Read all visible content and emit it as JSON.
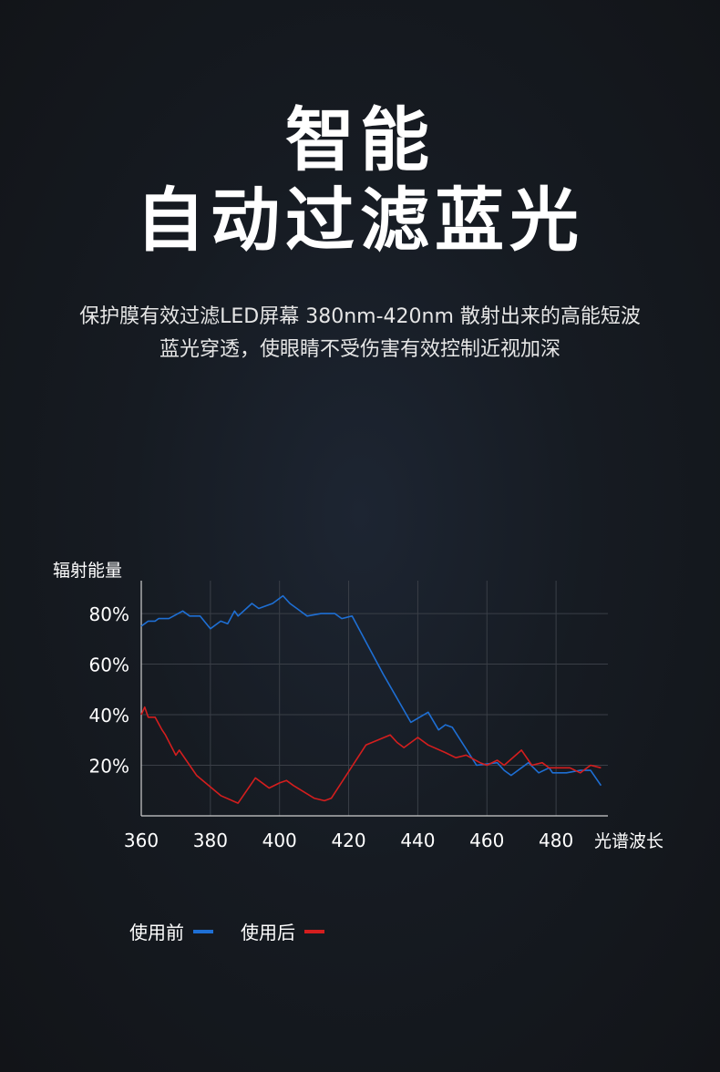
{
  "header": {
    "title_line1": "智能",
    "title_line2": "自动过滤蓝光",
    "desc_line1": "保护膜有效过滤LED屏幕 380nm-420nm 散射出来的高能短波",
    "desc_line2": "蓝光穿透，使眼睛不受伤害有效控制近视加深"
  },
  "chart_data": {
    "type": "line",
    "ylabel": "辐射能量",
    "xlabel": "光谱波长",
    "xlim": [
      360,
      495
    ],
    "ylim": [
      0,
      93
    ],
    "x_ticks": [
      "360",
      "380",
      "400",
      "420",
      "440",
      "460",
      "480"
    ],
    "y_ticks": [
      "20%",
      "40%",
      "60%",
      "80%"
    ],
    "grid": true,
    "legend_position": "bottom-left",
    "series": [
      {
        "name": "使用前",
        "color": "#1e6fd4",
        "points": [
          [
            360,
            75
          ],
          [
            361,
            76
          ],
          [
            362,
            77
          ],
          [
            364,
            77
          ],
          [
            365,
            78
          ],
          [
            367,
            78
          ],
          [
            368,
            78
          ],
          [
            372,
            81
          ],
          [
            374,
            79
          ],
          [
            377,
            79
          ],
          [
            380,
            74
          ],
          [
            383,
            77
          ],
          [
            385,
            76
          ],
          [
            387,
            81
          ],
          [
            388,
            79
          ],
          [
            392,
            84
          ],
          [
            394,
            82
          ],
          [
            398,
            84
          ],
          [
            401,
            87
          ],
          [
            403,
            84
          ],
          [
            405,
            82
          ],
          [
            408,
            79
          ],
          [
            412,
            80
          ],
          [
            416,
            80
          ],
          [
            418,
            78
          ],
          [
            421,
            79
          ],
          [
            430,
            56
          ],
          [
            438,
            37
          ],
          [
            443,
            41
          ],
          [
            446,
            34
          ],
          [
            448,
            36
          ],
          [
            450,
            35
          ],
          [
            457,
            20
          ],
          [
            463,
            21
          ],
          [
            465,
            18
          ],
          [
            467,
            16
          ],
          [
            472,
            21
          ],
          [
            475,
            17
          ],
          [
            478,
            19
          ],
          [
            479,
            17
          ],
          [
            483,
            17
          ],
          [
            487,
            18
          ],
          [
            490,
            18
          ],
          [
            493,
            12
          ]
        ]
      },
      {
        "name": "使用后",
        "color": "#d41e1e",
        "points": [
          [
            360,
            40
          ],
          [
            361,
            43
          ],
          [
            362,
            39
          ],
          [
            363,
            39
          ],
          [
            364,
            39
          ],
          [
            366,
            34
          ],
          [
            367,
            32
          ],
          [
            370,
            24
          ],
          [
            371,
            26
          ],
          [
            373,
            22
          ],
          [
            376,
            16
          ],
          [
            383,
            8
          ],
          [
            388,
            5
          ],
          [
            393,
            15
          ],
          [
            396,
            12
          ],
          [
            397,
            11
          ],
          [
            400,
            13
          ],
          [
            402,
            14
          ],
          [
            404,
            12
          ],
          [
            410,
            7
          ],
          [
            413,
            6
          ],
          [
            415,
            7
          ],
          [
            425,
            28
          ],
          [
            432,
            32
          ],
          [
            434,
            29
          ],
          [
            436,
            27
          ],
          [
            440,
            31
          ],
          [
            443,
            28
          ],
          [
            448,
            25
          ],
          [
            451,
            23
          ],
          [
            454,
            24
          ],
          [
            458,
            21
          ],
          [
            460,
            20
          ],
          [
            463,
            22
          ],
          [
            465,
            20
          ],
          [
            470,
            26
          ],
          [
            473,
            20
          ],
          [
            476,
            21
          ],
          [
            478,
            19
          ],
          [
            481,
            19
          ],
          [
            484,
            19
          ],
          [
            487,
            17
          ],
          [
            490,
            20
          ],
          [
            493,
            19
          ]
        ]
      }
    ]
  }
}
